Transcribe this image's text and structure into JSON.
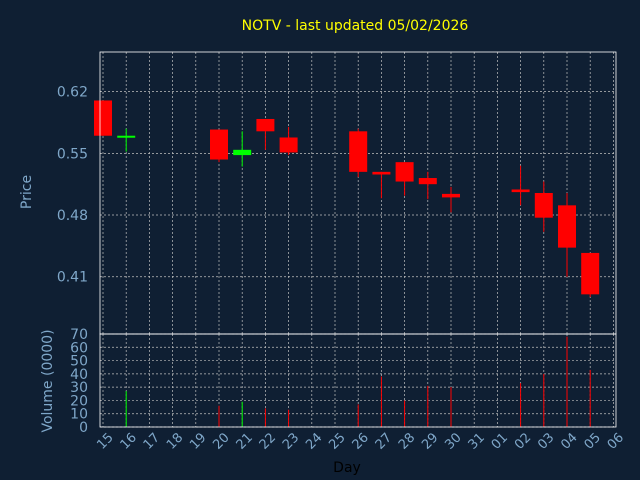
{
  "chart_data": {
    "type": "candlestick",
    "title": "NOTV - last updated 05/02/2026",
    "xlabel": "Day",
    "price_panel": {
      "ylabel": "Price",
      "ylim": [
        0.345,
        0.665
      ],
      "yticks": [
        "0.41",
        "0.48",
        "0.55",
        "0.62"
      ],
      "ytick_values": [
        0.41,
        0.48,
        0.55,
        0.62
      ]
    },
    "volume_panel": {
      "ylabel": "Volume (0000)",
      "ylim": [
        0,
        70
      ],
      "yticks": [
        "0",
        "10",
        "20",
        "30",
        "40",
        "50",
        "60",
        "70"
      ]
    },
    "x_ticks": [
      "15",
      "16",
      "17",
      "18",
      "19",
      "20",
      "21",
      "22",
      "23",
      "24",
      "25",
      "26",
      "27",
      "28",
      "29",
      "30",
      "31",
      "01",
      "02",
      "03",
      "04",
      "05",
      "06"
    ],
    "candles": [
      {
        "day": "15",
        "open": 0.61,
        "high": 0.61,
        "low": 0.57,
        "close": 0.57,
        "volume": 0
      },
      {
        "day": "16",
        "open": 0.568,
        "high": 0.578,
        "low": 0.552,
        "close": 0.57,
        "volume": 27
      },
      {
        "day": "20",
        "open": 0.577,
        "high": 0.577,
        "low": 0.54,
        "close": 0.543,
        "volume": 16
      },
      {
        "day": "21",
        "open": 0.548,
        "high": 0.575,
        "low": 0.535,
        "close": 0.554,
        "volume": 19
      },
      {
        "day": "22",
        "open": 0.589,
        "high": 0.589,
        "low": 0.554,
        "close": 0.575,
        "volume": 14
      },
      {
        "day": "23",
        "open": 0.568,
        "high": 0.58,
        "low": 0.548,
        "close": 0.551,
        "volume": 13
      },
      {
        "day": "26",
        "open": 0.575,
        "high": 0.578,
        "low": 0.523,
        "close": 0.529,
        "volume": 17
      },
      {
        "day": "27",
        "open": 0.529,
        "high": 0.529,
        "low": 0.499,
        "close": 0.526,
        "volume": 38
      },
      {
        "day": "28",
        "open": 0.54,
        "high": 0.54,
        "low": 0.502,
        "close": 0.518,
        "volume": 20
      },
      {
        "day": "29",
        "open": 0.522,
        "high": 0.529,
        "low": 0.498,
        "close": 0.515,
        "volume": 31
      },
      {
        "day": "30",
        "open": 0.504,
        "high": 0.512,
        "low": 0.483,
        "close": 0.5,
        "volume": 30
      },
      {
        "day": "02",
        "open": 0.509,
        "high": 0.536,
        "low": 0.491,
        "close": 0.506,
        "volume": 33
      },
      {
        "day": "03",
        "open": 0.505,
        "high": 0.518,
        "low": 0.461,
        "close": 0.477,
        "volume": 40
      },
      {
        "day": "04",
        "open": 0.491,
        "high": 0.505,
        "low": 0.41,
        "close": 0.443,
        "volume": 68
      },
      {
        "day": "05",
        "open": 0.437,
        "high": 0.437,
        "low": 0.387,
        "close": 0.39,
        "volume": 43
      }
    ],
    "colors": {
      "background": "#0f1f33",
      "title": "#ffff00",
      "axis_text": "#7fa7c9",
      "axis": "#ffffff",
      "grid": "#c0c0c0",
      "up": "#00ff00",
      "down": "#ff0000"
    }
  }
}
